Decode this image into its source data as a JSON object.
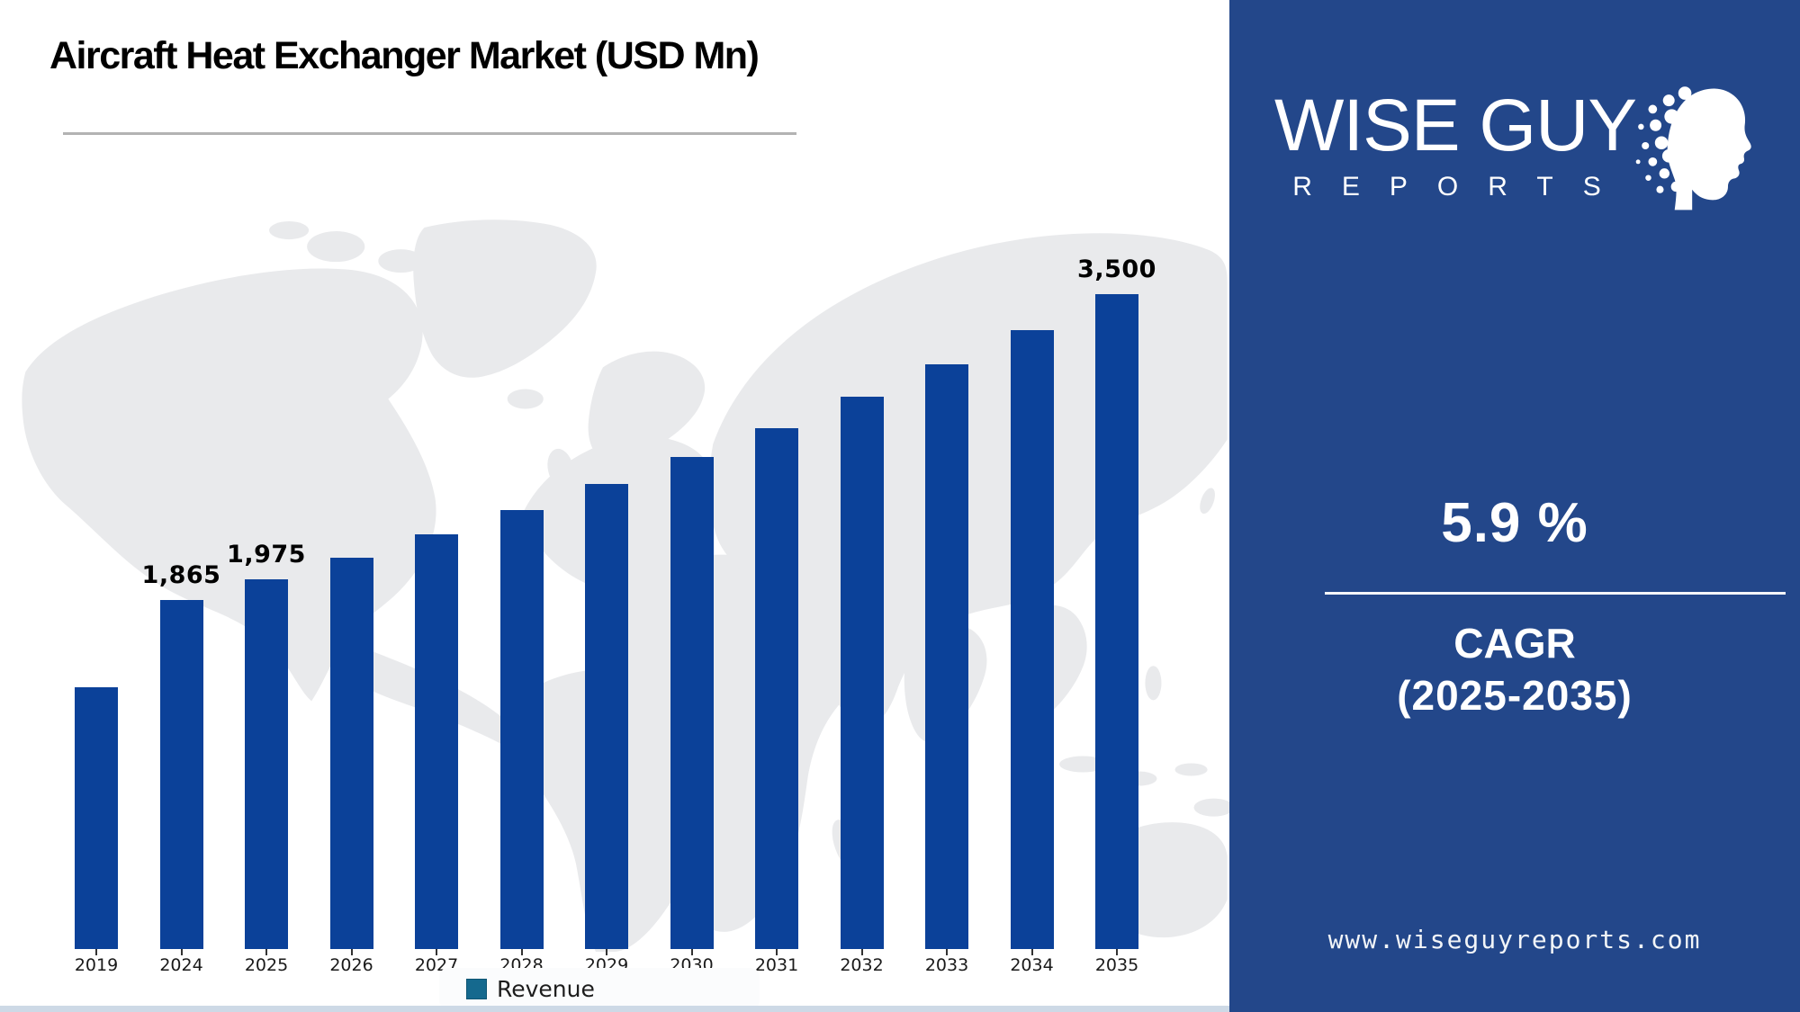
{
  "chart_data": {
    "type": "bar",
    "title": "Aircraft Heat Exchanger Market (USD Mn)",
    "categories": [
      "2019",
      "2024",
      "2025",
      "2026",
      "2027",
      "2028",
      "2029",
      "2030",
      "2031",
      "2032",
      "2033",
      "2034",
      "2035"
    ],
    "values": [
      1400,
      1865,
      1975,
      2091,
      2215,
      2346,
      2484,
      2631,
      2786,
      2950,
      3124,
      3309,
      3500
    ],
    "value_labels": [
      "",
      "1,865",
      "1,975",
      "",
      "",
      "",
      "",
      "",
      "",
      "",
      "",
      "",
      "3,500"
    ],
    "ylim": [
      0,
      3500
    ],
    "grid": false,
    "background": "world-map-watermark",
    "legend": {
      "label": "Revenue",
      "position": "bottom-center",
      "swatch_color": "#15698e"
    },
    "bar_color": "#0b4199"
  },
  "sidebar": {
    "background_color": "#23478a",
    "logo": {
      "line1": "WISE GUY",
      "line2": "REPORTS"
    },
    "cagr_value": "5.9 %",
    "cagr_line1": "CAGR",
    "cagr_line2": "(2025-2035)",
    "website": "www.wiseguyreports.com"
  },
  "colors": {
    "bar": "#0b4199",
    "sidebar_background": "#23478a",
    "legend_swatch": "#15698e",
    "map_watermark": "#e9eaec",
    "bottom_strip": "#cdd9e6",
    "title_underline": "#b3b3b3"
  }
}
